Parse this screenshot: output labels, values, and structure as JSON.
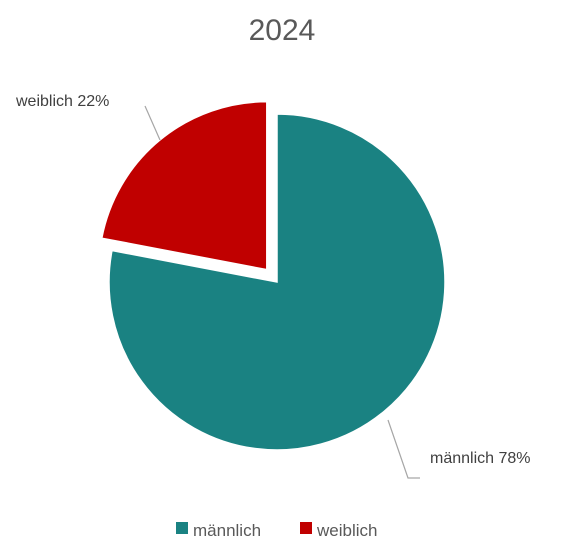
{
  "chart_data": {
    "type": "pie",
    "title": "2024",
    "categories": [
      "männlich",
      "weiblich"
    ],
    "values": [
      78,
      22
    ],
    "unit": "%",
    "colors": [
      "#1A8282",
      "#C00000"
    ],
    "exploded": [
      "weiblich"
    ],
    "start_angle_deg": 0,
    "direction": "clockwise",
    "data_labels": [
      "männlich 78%",
      "weiblich 22%"
    ],
    "legend": {
      "placement": "bottom",
      "entries": [
        "männlich",
        "weiblich"
      ]
    }
  }
}
